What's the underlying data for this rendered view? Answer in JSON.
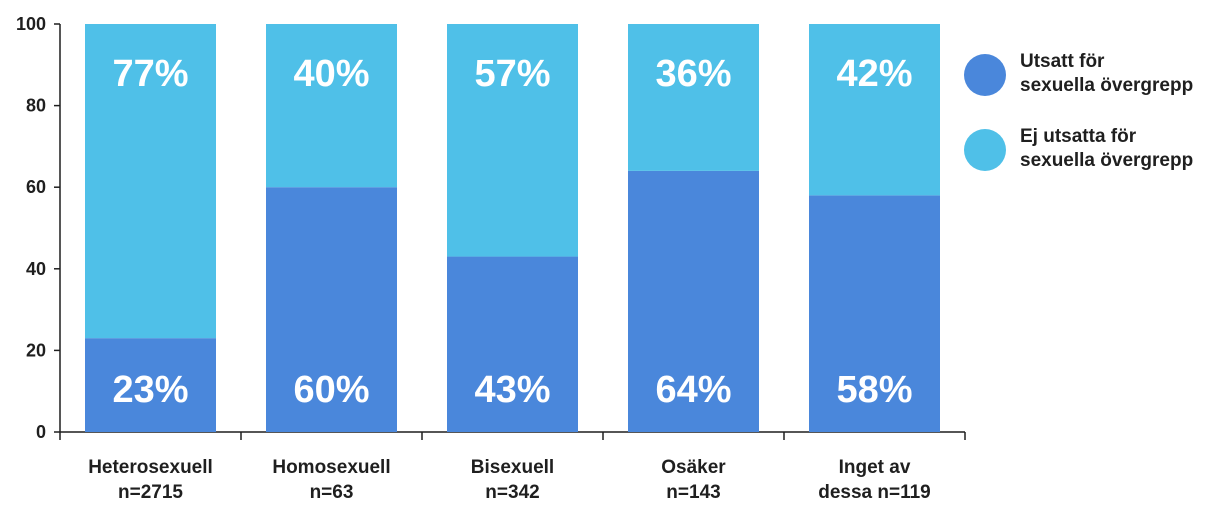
{
  "chart_data": {
    "type": "bar",
    "stacked": true,
    "categories": [
      [
        "Heterosexuell",
        "n=2715"
      ],
      [
        "Homosexuell",
        "n=63"
      ],
      [
        "Bisexuell",
        "n=342"
      ],
      [
        "Osäker",
        "n=143"
      ],
      [
        "Inget av",
        "dessa n=119"
      ]
    ],
    "series": [
      {
        "name": [
          "Utsatt för",
          "sexuella övergrepp"
        ],
        "values": [
          23,
          60,
          43,
          64,
          58
        ],
        "labels": [
          "23%",
          "60%",
          "43%",
          "64%",
          "58%"
        ],
        "color": "#4a87db"
      },
      {
        "name": [
          "Ej utsatta för",
          "sexuella övergrepp"
        ],
        "values": [
          77,
          40,
          57,
          36,
          42
        ],
        "labels": [
          "77%",
          "40%",
          "57%",
          "36%",
          "42%"
        ],
        "color": "#4fc0e8"
      }
    ],
    "ylim": [
      0,
      100
    ],
    "yticks": [
      "0",
      "20",
      "40",
      "60",
      "80",
      "100"
    ],
    "grid": false,
    "legend": "right"
  }
}
